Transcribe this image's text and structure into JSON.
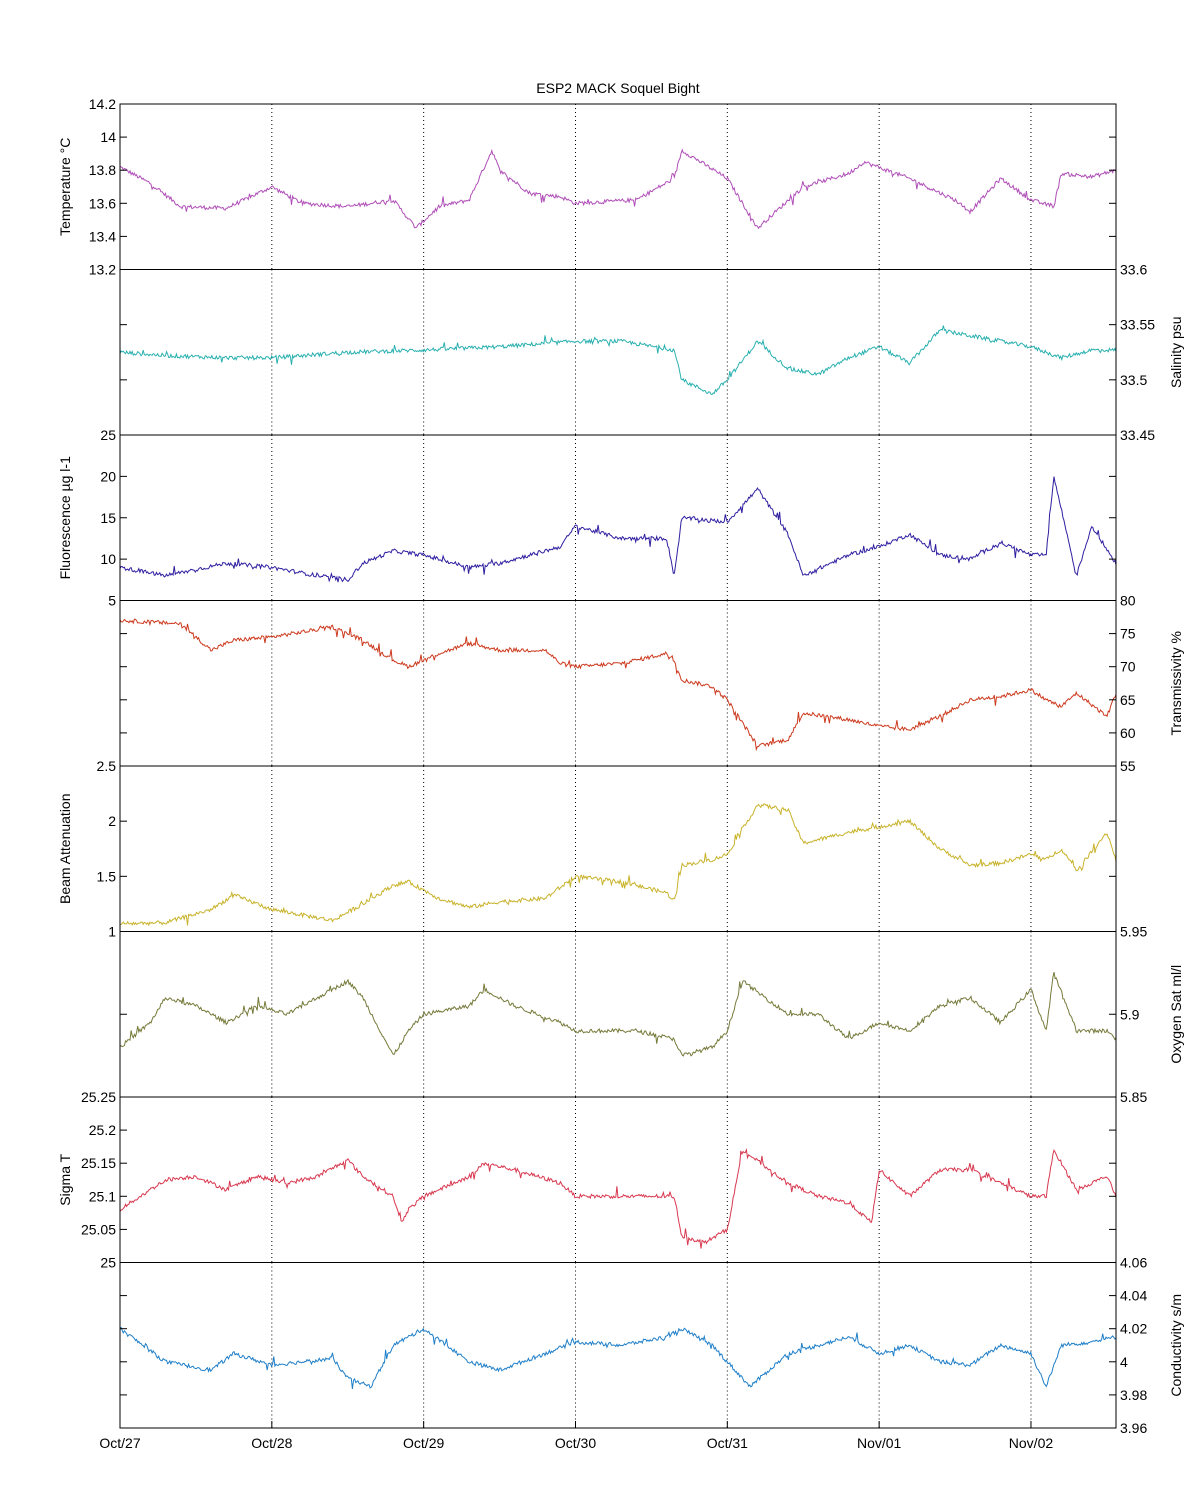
{
  "chart_data": {
    "type": "line",
    "title": "ESP2 MACK  Soquel Bight",
    "x_ticks": [
      "Oct/27",
      "Oct/28",
      "Oct/29",
      "Oct/30",
      "Oct/31",
      "Nov/01",
      "Nov/02"
    ],
    "x_range": [
      "Oct/27 00:00",
      "Nov/02 14:00"
    ],
    "grid": "vertical dotted lines at day ticks",
    "panels": [
      {
        "name": "Temperature °C",
        "ylabel": "Temperature °C",
        "axis_side": "left",
        "color": "#b04fb8",
        "ylim": [
          13.2,
          14.2
        ],
        "ticks": [
          "13.2",
          "13.4",
          "13.6",
          "13.8",
          "14",
          "14.2"
        ],
        "x": [
          0,
          0.2,
          0.4,
          0.7,
          1.0,
          1.2,
          1.5,
          1.8,
          1.95,
          2.1,
          2.3,
          2.45,
          2.5,
          2.7,
          2.9,
          3.0,
          3.4,
          3.65,
          3.7,
          4.0,
          4.2,
          4.5,
          4.8,
          4.9,
          5.2,
          5.5,
          5.6,
          5.8,
          6.0,
          6.15,
          6.2,
          6.4,
          6.56
        ],
        "values": [
          13.82,
          13.72,
          13.58,
          13.57,
          13.7,
          13.6,
          13.58,
          13.62,
          13.45,
          13.58,
          13.62,
          13.92,
          13.8,
          13.66,
          13.64,
          13.6,
          13.62,
          13.75,
          13.92,
          13.75,
          13.45,
          13.7,
          13.78,
          13.85,
          13.75,
          13.62,
          13.55,
          13.75,
          13.62,
          13.58,
          13.78,
          13.76,
          13.8
        ]
      },
      {
        "name": "Salinity psu",
        "ylabel": "Salinity psu",
        "axis_side": "right",
        "color": "#2bb0b0",
        "ylim": [
          33.45,
          33.6
        ],
        "ticks": [
          "33.45",
          "33.5",
          "33.55",
          "33.6"
        ],
        "x": [
          0,
          0.3,
          0.7,
          1.0,
          1.5,
          2.0,
          2.5,
          3.0,
          3.3,
          3.65,
          3.7,
          3.9,
          4.0,
          4.2,
          4.4,
          4.6,
          4.8,
          5.0,
          5.2,
          5.4,
          5.6,
          5.8,
          6.0,
          6.2,
          6.4,
          6.56
        ],
        "values": [
          33.525,
          33.522,
          33.52,
          33.52,
          33.525,
          33.527,
          33.53,
          33.535,
          33.535,
          33.527,
          33.5,
          33.487,
          33.5,
          33.535,
          33.51,
          33.505,
          33.52,
          33.53,
          33.515,
          33.545,
          33.54,
          33.535,
          33.53,
          33.52,
          33.527,
          33.527
        ]
      },
      {
        "name": "Fluorescence µg l-1",
        "ylabel": "Fluorescence µg l-1",
        "axis_side": "left",
        "color": "#2f1fa0",
        "ylim": [
          5,
          25
        ],
        "ticks": [
          "5",
          "10",
          "15",
          "20",
          "25"
        ],
        "x": [
          0,
          0.3,
          0.7,
          1.0,
          1.3,
          1.5,
          1.6,
          1.8,
          2.0,
          2.3,
          2.5,
          2.7,
          2.9,
          3.0,
          3.3,
          3.6,
          3.65,
          3.7,
          4.0,
          4.2,
          4.4,
          4.5,
          4.8,
          5.0,
          5.2,
          5.4,
          5.6,
          5.8,
          6.0,
          6.1,
          6.15,
          6.3,
          6.4,
          6.56
        ],
        "values": [
          9,
          8,
          9.5,
          9,
          8,
          7.5,
          9.5,
          11,
          10.5,
          9,
          9.5,
          10.5,
          11.5,
          14,
          12.5,
          12.5,
          8,
          15,
          14.5,
          18.5,
          13,
          8,
          10.5,
          11.5,
          13,
          10.5,
          10,
          12,
          10.5,
          10.5,
          20,
          8,
          14,
          9.5
        ]
      },
      {
        "name": "Transmissivity %",
        "ylabel": "Transmissivity %",
        "axis_side": "right",
        "color": "#cc3a1e",
        "ylim": [
          55,
          80
        ],
        "ticks": [
          "55",
          "60",
          "65",
          "70",
          "75",
          "80"
        ],
        "x": [
          0,
          0.4,
          0.6,
          0.75,
          1.0,
          1.4,
          1.6,
          1.8,
          1.9,
          2.1,
          2.3,
          2.5,
          2.8,
          2.9,
          3.0,
          3.3,
          3.6,
          3.65,
          3.7,
          3.9,
          4.0,
          4.2,
          4.4,
          4.5,
          4.8,
          5.0,
          5.2,
          5.4,
          5.6,
          5.8,
          6.0,
          6.1,
          6.2,
          6.3,
          6.5,
          6.56
        ],
        "values": [
          77,
          76.5,
          72.5,
          74,
          74.5,
          76,
          74,
          71,
          70,
          72,
          73.5,
          72.5,
          72.5,
          70.5,
          70,
          70.5,
          72,
          71,
          68,
          67,
          65,
          58,
          59,
          63,
          62,
          61,
          60.5,
          62.5,
          65,
          65.5,
          66.5,
          65,
          64,
          66,
          62.5,
          66
        ]
      },
      {
        "name": "Beam Attenuation",
        "ylabel": "Beam Attenuation",
        "axis_side": "left",
        "color": "#c9b32c",
        "ylim": [
          1,
          2.5
        ],
        "ticks": [
          "1",
          "1.5",
          "2",
          "2.5"
        ],
        "x": [
          0,
          0.3,
          0.6,
          0.75,
          1.0,
          1.4,
          1.6,
          1.8,
          1.9,
          2.1,
          2.3,
          2.5,
          2.8,
          3.0,
          3.3,
          3.6,
          3.65,
          3.7,
          3.9,
          4.0,
          4.2,
          4.4,
          4.5,
          4.8,
          5.0,
          5.2,
          5.4,
          5.6,
          5.8,
          6.0,
          6.1,
          6.2,
          6.3,
          6.5,
          6.56
        ],
        "values": [
          1.07,
          1.08,
          1.2,
          1.33,
          1.2,
          1.1,
          1.25,
          1.42,
          1.45,
          1.3,
          1.22,
          1.27,
          1.3,
          1.5,
          1.45,
          1.35,
          1.28,
          1.6,
          1.65,
          1.7,
          2.15,
          2.1,
          1.8,
          1.9,
          1.95,
          2.0,
          1.75,
          1.6,
          1.62,
          1.7,
          1.65,
          1.75,
          1.55,
          1.9,
          1.65
        ]
      },
      {
        "name": "Oxygen Sat ml/l",
        "ylabel": "Oxygen Sat ml/l",
        "axis_side": "right",
        "color": "#767a3a",
        "ylim": [
          5.85,
          5.95
        ],
        "ticks": [
          "5.85",
          "5.9",
          "5.95"
        ],
        "x": [
          0,
          0.2,
          0.3,
          0.5,
          0.7,
          0.9,
          1.1,
          1.3,
          1.5,
          1.6,
          1.8,
          1.9,
          2.0,
          2.3,
          2.4,
          2.6,
          2.9,
          3.0,
          3.4,
          3.65,
          3.7,
          3.9,
          4.0,
          4.1,
          4.4,
          4.6,
          4.8,
          5.0,
          5.2,
          5.4,
          5.6,
          5.8,
          6.0,
          6.1,
          6.15,
          6.3,
          6.5,
          6.56
        ],
        "values": [
          5.88,
          5.895,
          5.91,
          5.905,
          5.895,
          5.905,
          5.9,
          5.91,
          5.92,
          5.91,
          5.875,
          5.89,
          5.9,
          5.905,
          5.915,
          5.905,
          5.895,
          5.89,
          5.89,
          5.885,
          5.875,
          5.88,
          5.89,
          5.92,
          5.9,
          5.9,
          5.885,
          5.895,
          5.89,
          5.905,
          5.91,
          5.895,
          5.915,
          5.89,
          5.925,
          5.89,
          5.89,
          5.885
        ]
      },
      {
        "name": "Sigma T",
        "ylabel": "Sigma T",
        "axis_side": "left",
        "color": "#d8384f",
        "ylim": [
          25,
          25.25
        ],
        "ticks": [
          "25",
          "25.05",
          "25.1",
          "25.15",
          "25.2",
          "25.25"
        ],
        "x": [
          0,
          0.2,
          0.3,
          0.5,
          0.7,
          0.9,
          1.1,
          1.3,
          1.5,
          1.6,
          1.8,
          1.85,
          1.9,
          2.0,
          2.3,
          2.4,
          2.6,
          2.9,
          3.0,
          3.4,
          3.65,
          3.7,
          3.85,
          4.0,
          4.1,
          4.4,
          4.6,
          4.8,
          4.95,
          5.0,
          5.2,
          5.4,
          5.6,
          5.8,
          6.0,
          6.1,
          6.15,
          6.3,
          6.5,
          6.56
        ],
        "values": [
          25.08,
          25.11,
          25.125,
          25.13,
          25.11,
          25.13,
          25.12,
          25.13,
          25.155,
          25.13,
          25.1,
          25.06,
          25.08,
          25.1,
          25.13,
          25.15,
          25.14,
          25.12,
          25.1,
          25.1,
          25.1,
          25.04,
          25.03,
          25.05,
          25.17,
          25.12,
          25.1,
          25.09,
          25.06,
          25.14,
          25.1,
          25.14,
          25.14,
          25.12,
          25.1,
          25.1,
          25.17,
          25.11,
          25.13,
          25.1
        ]
      },
      {
        "name": "Conductivity s/m",
        "ylabel": "Conductivity s/m",
        "axis_side": "right",
        "color": "#1f7fc8",
        "ylim": [
          3.96,
          4.06
        ],
        "ticks": [
          "3.96",
          "3.98",
          "4",
          "4.02",
          "4.04",
          "4.06"
        ],
        "x": [
          0,
          0.3,
          0.6,
          0.75,
          1.0,
          1.4,
          1.5,
          1.65,
          1.8,
          2.0,
          2.3,
          2.5,
          2.8,
          3.0,
          3.3,
          3.6,
          3.7,
          3.9,
          4.0,
          4.15,
          4.4,
          4.6,
          4.8,
          5.0,
          5.2,
          5.4,
          5.6,
          5.8,
          6.0,
          6.1,
          6.2,
          6.4,
          6.56
        ],
        "values": [
          4.02,
          4.0,
          3.995,
          4.005,
          3.998,
          4.002,
          3.99,
          3.985,
          4.01,
          4.02,
          4.0,
          3.995,
          4.005,
          4.012,
          4.01,
          4.015,
          4.02,
          4.01,
          4.0,
          3.985,
          4.005,
          4.01,
          4.015,
          4.005,
          4.01,
          4.0,
          3.998,
          4.01,
          4.005,
          3.985,
          4.01,
          4.012,
          4.015
        ]
      }
    ]
  }
}
